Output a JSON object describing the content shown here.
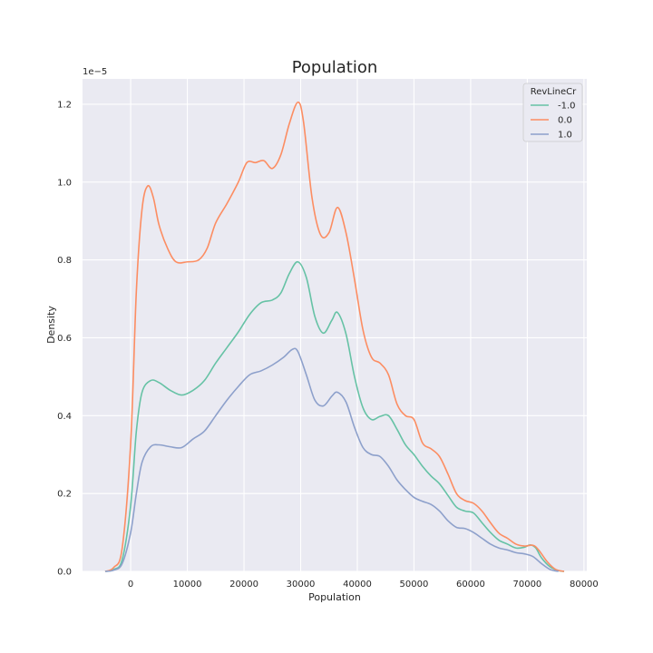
{
  "chart_data": {
    "type": "line",
    "title": "Population",
    "xlabel": "Population",
    "ylabel": "Density",
    "y_offset_label": "1e−5",
    "xlim": [
      -8500,
      80500
    ],
    "ylim": [
      0,
      1.265
    ],
    "x_ticks": [
      0,
      10000,
      20000,
      30000,
      40000,
      50000,
      60000,
      70000,
      80000
    ],
    "y_ticks": [
      0.0,
      0.2,
      0.4,
      0.6,
      0.8,
      1.0,
      1.2
    ],
    "x_tick_labels": [
      "0",
      "10000",
      "20000",
      "30000",
      "40000",
      "50000",
      "60000",
      "70000",
      "80000"
    ],
    "y_tick_labels": [
      "0.0",
      "0.2",
      "0.4",
      "0.6",
      "0.8",
      "1.0",
      "1.2"
    ],
    "grid": true,
    "legend": {
      "title": "RevLineCr",
      "placement": "top-right"
    },
    "series": [
      {
        "name": "-1.0",
        "color": "#66c2a5",
        "points": [
          [
            -4500,
            0
          ],
          [
            -3000,
            0.005
          ],
          [
            -1500,
            0.03
          ],
          [
            0,
            0.17
          ],
          [
            1000,
            0.36
          ],
          [
            2000,
            0.46
          ],
          [
            3500,
            0.49
          ],
          [
            5000,
            0.485
          ],
          [
            7000,
            0.465
          ],
          [
            9000,
            0.453
          ],
          [
            11000,
            0.465
          ],
          [
            13000,
            0.49
          ],
          [
            15000,
            0.535
          ],
          [
            17000,
            0.575
          ],
          [
            19000,
            0.615
          ],
          [
            21000,
            0.66
          ],
          [
            23000,
            0.69
          ],
          [
            25000,
            0.697
          ],
          [
            26500,
            0.715
          ],
          [
            28000,
            0.765
          ],
          [
            29500,
            0.795
          ],
          [
            31000,
            0.755
          ],
          [
            32500,
            0.655
          ],
          [
            34000,
            0.612
          ],
          [
            35500,
            0.645
          ],
          [
            36500,
            0.665
          ],
          [
            38000,
            0.61
          ],
          [
            39500,
            0.5
          ],
          [
            41000,
            0.42
          ],
          [
            42500,
            0.39
          ],
          [
            44000,
            0.398
          ],
          [
            45500,
            0.4
          ],
          [
            47000,
            0.365
          ],
          [
            48500,
            0.325
          ],
          [
            50000,
            0.3
          ],
          [
            51500,
            0.27
          ],
          [
            53000,
            0.245
          ],
          [
            54500,
            0.225
          ],
          [
            56000,
            0.195
          ],
          [
            57500,
            0.165
          ],
          [
            59000,
            0.155
          ],
          [
            60500,
            0.15
          ],
          [
            62000,
            0.125
          ],
          [
            63500,
            0.1
          ],
          [
            65000,
            0.08
          ],
          [
            66500,
            0.07
          ],
          [
            68000,
            0.06
          ],
          [
            69500,
            0.062
          ],
          [
            70500,
            0.068
          ],
          [
            71500,
            0.06
          ],
          [
            72500,
            0.035
          ],
          [
            74000,
            0.012
          ],
          [
            75500,
            0.002
          ],
          [
            76500,
            0
          ]
        ]
      },
      {
        "name": "0.0",
        "color": "#fc8d62",
        "points": [
          [
            -4500,
            0
          ],
          [
            -3000,
            0.01
          ],
          [
            -1500,
            0.06
          ],
          [
            0,
            0.33
          ],
          [
            1000,
            0.72
          ],
          [
            2000,
            0.93
          ],
          [
            3000,
            0.99
          ],
          [
            4000,
            0.96
          ],
          [
            5000,
            0.89
          ],
          [
            6500,
            0.83
          ],
          [
            8000,
            0.795
          ],
          [
            10000,
            0.795
          ],
          [
            12000,
            0.8
          ],
          [
            13500,
            0.83
          ],
          [
            15000,
            0.895
          ],
          [
            17000,
            0.945
          ],
          [
            19000,
            1.0
          ],
          [
            20500,
            1.05
          ],
          [
            22000,
            1.05
          ],
          [
            23500,
            1.055
          ],
          [
            25000,
            1.035
          ],
          [
            26500,
            1.07
          ],
          [
            28000,
            1.15
          ],
          [
            29500,
            1.205
          ],
          [
            30500,
            1.155
          ],
          [
            32000,
            0.96
          ],
          [
            33500,
            0.865
          ],
          [
            35000,
            0.87
          ],
          [
            36500,
            0.935
          ],
          [
            38000,
            0.87
          ],
          [
            39500,
            0.75
          ],
          [
            41000,
            0.62
          ],
          [
            42500,
            0.55
          ],
          [
            44000,
            0.535
          ],
          [
            45500,
            0.505
          ],
          [
            47000,
            0.43
          ],
          [
            48500,
            0.4
          ],
          [
            50000,
            0.39
          ],
          [
            51500,
            0.33
          ],
          [
            53000,
            0.315
          ],
          [
            54500,
            0.295
          ],
          [
            56000,
            0.25
          ],
          [
            57500,
            0.2
          ],
          [
            59000,
            0.182
          ],
          [
            60500,
            0.175
          ],
          [
            62000,
            0.155
          ],
          [
            63500,
            0.125
          ],
          [
            65000,
            0.098
          ],
          [
            66500,
            0.085
          ],
          [
            68000,
            0.07
          ],
          [
            69500,
            0.065
          ],
          [
            71000,
            0.067
          ],
          [
            72000,
            0.055
          ],
          [
            73500,
            0.025
          ],
          [
            75000,
            0.005
          ],
          [
            76500,
            0
          ]
        ]
      },
      {
        "name": "1.0",
        "color": "#8da0cb",
        "points": [
          [
            -4500,
            0
          ],
          [
            -3000,
            0.003
          ],
          [
            -1500,
            0.02
          ],
          [
            0,
            0.1
          ],
          [
            1000,
            0.2
          ],
          [
            2000,
            0.28
          ],
          [
            3500,
            0.32
          ],
          [
            5000,
            0.325
          ],
          [
            7000,
            0.32
          ],
          [
            9000,
            0.318
          ],
          [
            11000,
            0.34
          ],
          [
            13000,
            0.36
          ],
          [
            15000,
            0.4
          ],
          [
            17000,
            0.44
          ],
          [
            19000,
            0.475
          ],
          [
            21000,
            0.505
          ],
          [
            23000,
            0.515
          ],
          [
            25000,
            0.53
          ],
          [
            27000,
            0.55
          ],
          [
            28500,
            0.57
          ],
          [
            29500,
            0.565
          ],
          [
            31000,
            0.505
          ],
          [
            32500,
            0.44
          ],
          [
            34000,
            0.425
          ],
          [
            35500,
            0.45
          ],
          [
            36500,
            0.46
          ],
          [
            38000,
            0.435
          ],
          [
            39500,
            0.37
          ],
          [
            41000,
            0.318
          ],
          [
            42500,
            0.3
          ],
          [
            44000,
            0.295
          ],
          [
            45500,
            0.27
          ],
          [
            47000,
            0.235
          ],
          [
            48500,
            0.21
          ],
          [
            50000,
            0.19
          ],
          [
            51500,
            0.18
          ],
          [
            53000,
            0.172
          ],
          [
            54500,
            0.155
          ],
          [
            56000,
            0.13
          ],
          [
            57500,
            0.113
          ],
          [
            59000,
            0.11
          ],
          [
            60500,
            0.1
          ],
          [
            62000,
            0.085
          ],
          [
            63500,
            0.07
          ],
          [
            65000,
            0.06
          ],
          [
            66500,
            0.055
          ],
          [
            68000,
            0.048
          ],
          [
            69500,
            0.045
          ],
          [
            71000,
            0.038
          ],
          [
            72500,
            0.02
          ],
          [
            74000,
            0.005
          ],
          [
            75500,
            0
          ]
        ]
      }
    ]
  }
}
